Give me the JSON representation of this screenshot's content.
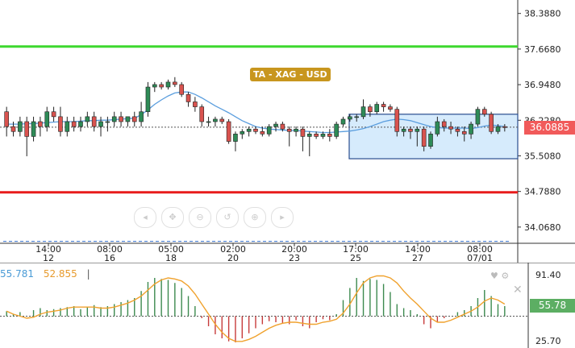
{
  "ta_label": "TA - XAG - USD",
  "current_price": "36.0885",
  "osc_current": "55.78",
  "osc_values": {
    "v1": "55.781",
    "v2": "52.855",
    "sep": "|"
  },
  "icons": [
    "tool-1-icon",
    "tool-2-icon",
    "tool-3-icon",
    "tool-4-icon",
    "tool-5-icon",
    "tool-6-icon",
    "heart-icon",
    "settings-icon",
    "close-icon"
  ],
  "chart_data": {
    "type": "candlestick",
    "y_ticks": [
      "38.3880",
      "37.6680",
      "36.9480",
      "36.2280",
      "35.5080",
      "34.7880",
      "34.0680"
    ],
    "x_ticks": [
      {
        "time": "14:00",
        "date": "12"
      },
      {
        "time": "08:00",
        "date": "16"
      },
      {
        "time": "05:00",
        "date": "18"
      },
      {
        "time": "02:00",
        "date": "20"
      },
      {
        "time": "20:00",
        "date": "23"
      },
      {
        "time": "17:00",
        "date": "25"
      },
      {
        "time": "14:00",
        "date": "27"
      },
      {
        "time": "08:00",
        "date": "07/01"
      }
    ],
    "ylim": [
      33.74,
      38.66
    ],
    "resistance": 37.72,
    "support": 34.77,
    "dashed_level": 33.78,
    "last_price": 36.0885,
    "range_box": {
      "low": 35.45,
      "high": 36.35
    },
    "candles": [
      [
        36.4,
        36.5,
        35.9,
        36.1
      ],
      [
        36.1,
        36.2,
        35.9,
        36.0
      ],
      [
        36.0,
        36.3,
        35.9,
        36.2
      ],
      [
        36.2,
        36.3,
        35.5,
        35.9
      ],
      [
        35.9,
        36.3,
        35.8,
        36.2
      ],
      [
        36.2,
        36.3,
        35.9,
        36.1
      ],
      [
        36.1,
        36.5,
        36.0,
        36.4
      ],
      [
        36.4,
        36.5,
        36.2,
        36.3
      ],
      [
        36.3,
        36.5,
        35.9,
        36.0
      ],
      [
        36.0,
        36.3,
        35.9,
        36.2
      ],
      [
        36.2,
        36.3,
        36.0,
        36.1
      ],
      [
        36.1,
        36.3,
        36.0,
        36.2
      ],
      [
        36.2,
        36.4,
        36.1,
        36.3
      ],
      [
        36.3,
        36.4,
        36.0,
        36.1
      ],
      [
        36.1,
        36.3,
        35.9,
        36.2
      ],
      [
        36.2,
        36.3,
        36.0,
        36.2
      ],
      [
        36.2,
        36.4,
        36.1,
        36.3
      ],
      [
        36.3,
        36.4,
        36.1,
        36.2
      ],
      [
        36.2,
        36.3,
        36.1,
        36.3
      ],
      [
        36.3,
        36.4,
        36.1,
        36.2
      ],
      [
        36.2,
        36.6,
        36.1,
        36.4
      ],
      [
        36.4,
        37.0,
        36.3,
        36.9
      ],
      [
        36.9,
        37.0,
        36.8,
        36.95
      ],
      [
        36.95,
        37.0,
        36.85,
        36.9
      ],
      [
        36.9,
        37.05,
        36.85,
        37.0
      ],
      [
        37.0,
        37.1,
        36.9,
        36.95
      ],
      [
        36.95,
        37.0,
        36.7,
        36.75
      ],
      [
        36.75,
        36.8,
        36.5,
        36.6
      ],
      [
        36.6,
        36.7,
        36.4,
        36.5
      ],
      [
        36.5,
        36.55,
        36.1,
        36.2
      ],
      [
        36.2,
        36.3,
        36.1,
        36.2
      ],
      [
        36.2,
        36.3,
        36.1,
        36.25
      ],
      [
        36.25,
        36.3,
        36.15,
        36.2
      ],
      [
        36.2,
        36.25,
        35.75,
        35.8
      ],
      [
        35.8,
        36.0,
        35.6,
        35.95
      ],
      [
        35.95,
        36.05,
        35.85,
        36.0
      ],
      [
        36.0,
        36.1,
        35.9,
        36.05
      ],
      [
        36.05,
        36.1,
        35.95,
        36.0
      ],
      [
        36.0,
        36.1,
        35.9,
        35.95
      ],
      [
        35.95,
        36.15,
        35.9,
        36.1
      ],
      [
        36.1,
        36.2,
        36.0,
        36.15
      ],
      [
        36.15,
        36.2,
        36.0,
        36.05
      ],
      [
        36.05,
        36.1,
        35.7,
        36.0
      ],
      [
        36.0,
        36.1,
        35.9,
        36.05
      ],
      [
        36.05,
        36.1,
        35.6,
        35.9
      ],
      [
        35.9,
        36.0,
        35.5,
        35.95
      ],
      [
        35.95,
        36.0,
        35.85,
        35.9
      ],
      [
        35.9,
        36.0,
        35.85,
        35.95
      ],
      [
        35.95,
        36.05,
        35.8,
        35.9
      ],
      [
        35.9,
        36.2,
        35.85,
        36.15
      ],
      [
        36.15,
        36.3,
        36.1,
        36.25
      ],
      [
        36.25,
        36.35,
        36.2,
        36.3
      ],
      [
        36.3,
        36.35,
        36.2,
        36.3
      ],
      [
        36.3,
        36.65,
        36.25,
        36.5
      ],
      [
        36.5,
        36.55,
        36.3,
        36.4
      ],
      [
        36.4,
        36.6,
        36.35,
        36.55
      ],
      [
        36.55,
        36.6,
        36.4,
        36.5
      ],
      [
        36.5,
        36.55,
        36.4,
        36.45
      ],
      [
        36.45,
        36.5,
        35.9,
        36.0
      ],
      [
        36.0,
        36.1,
        35.9,
        36.05
      ],
      [
        36.05,
        36.1,
        35.85,
        36.0
      ],
      [
        36.0,
        36.1,
        35.7,
        36.05
      ],
      [
        36.05,
        36.1,
        35.6,
        35.7
      ],
      [
        35.7,
        36.0,
        35.65,
        35.95
      ],
      [
        35.95,
        36.3,
        35.9,
        36.2
      ],
      [
        36.2,
        36.25,
        36.0,
        36.1
      ],
      [
        36.1,
        36.2,
        35.95,
        36.05
      ],
      [
        36.05,
        36.1,
        35.9,
        36.0
      ],
      [
        36.0,
        36.1,
        35.8,
        35.95
      ],
      [
        35.95,
        36.2,
        35.85,
        36.15
      ],
      [
        36.15,
        36.5,
        36.1,
        36.45
      ],
      [
        36.45,
        36.5,
        36.3,
        36.35
      ],
      [
        36.35,
        36.4,
        35.95,
        36.0
      ],
      [
        36.0,
        36.15,
        35.95,
        36.1
      ],
      [
        36.1,
        36.15,
        36.0,
        36.08
      ]
    ],
    "ma": [
      36.15,
      36.15,
      36.15,
      36.16,
      36.16,
      36.17,
      36.18,
      36.19,
      36.2,
      36.2,
      36.2,
      36.21,
      36.22,
      36.22,
      36.23,
      36.23,
      36.24,
      36.25,
      36.26,
      36.27,
      36.34,
      36.44,
      36.55,
      36.64,
      36.72,
      36.78,
      36.8,
      36.8,
      36.75,
      36.68,
      36.6,
      36.52,
      36.45,
      36.38,
      36.3,
      36.22,
      36.16,
      36.1,
      36.07,
      36.05,
      36.04,
      36.03,
      36.02,
      36.02,
      36.01,
      36.0,
      35.99,
      35.98,
      35.98,
      35.99,
      36.0,
      36.01,
      36.03,
      36.06,
      36.1,
      36.15,
      36.2,
      36.23,
      36.25,
      36.24,
      36.22,
      36.18,
      36.14,
      36.1,
      36.08,
      36.07,
      36.07,
      36.07,
      36.07,
      36.06,
      36.08,
      36.11,
      36.13,
      36.12,
      36.1
    ],
    "oscillator": {
      "range": [
        20,
        100
      ],
      "ticks": [
        "91.40",
        "25.70"
      ],
      "midline": 50,
      "histogram": [
        55,
        52,
        54,
        50,
        56,
        58,
        56,
        57,
        58,
        59,
        60,
        57,
        59,
        61,
        59,
        60,
        62,
        64,
        66,
        68,
        75,
        84,
        88,
        87,
        86,
        83,
        78,
        70,
        60,
        48,
        40,
        32,
        28,
        25,
        24,
        28,
        33,
        38,
        42,
        45,
        44,
        43,
        42,
        46,
        40,
        38,
        44,
        47,
        46,
        52,
        66,
        78,
        88,
        85,
        87,
        86,
        82,
        74,
        62,
        58,
        56,
        52,
        42,
        38,
        44,
        48,
        50,
        54,
        56,
        60,
        68,
        76,
        70,
        62,
        60
      ],
      "line": [
        55,
        52,
        50,
        48,
        49,
        52,
        54,
        55,
        56,
        58,
        59,
        59,
        59,
        59,
        58,
        58,
        59,
        61,
        63,
        66,
        70,
        76,
        82,
        86,
        88,
        87,
        85,
        80,
        72,
        62,
        52,
        42,
        34,
        28,
        25,
        25,
        27,
        30,
        34,
        38,
        41,
        43,
        44,
        44,
        43,
        42,
        42,
        44,
        45,
        47,
        53,
        62,
        73,
        83,
        88,
        90,
        90,
        88,
        83,
        75,
        68,
        62,
        55,
        48,
        44,
        44,
        46,
        49,
        52,
        55,
        59,
        65,
        68,
        66,
        62
      ]
    }
  }
}
